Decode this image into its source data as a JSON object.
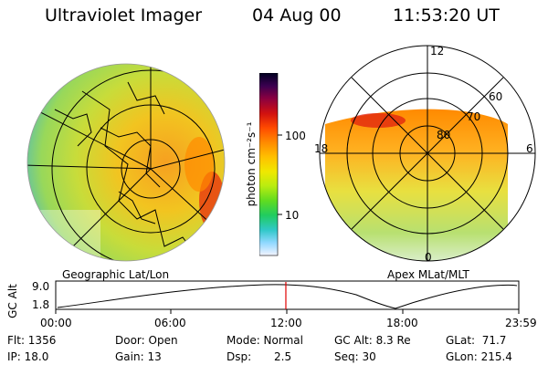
{
  "header": {
    "instrument": "Ultraviolet Imager",
    "date": "04 Aug 00",
    "time": "11:53:20 UT"
  },
  "left_panel": {
    "caption": "Geographic Lat/Lon"
  },
  "right_panel": {
    "caption": "Apex MLat/MLT",
    "mlt_labels": {
      "top": "12",
      "left": "18",
      "right": "6",
      "bottom": "0"
    },
    "lat_labels": [
      "80",
      "70",
      "60"
    ]
  },
  "colorbar": {
    "unit_label": "photon cm⁻²s⁻¹",
    "ticks": [
      "100",
      "10"
    ],
    "colors": [
      "#000020",
      "#200040",
      "#6a0050",
      "#c00018",
      "#ff3000",
      "#ff7a00",
      "#ffb000",
      "#ffe000",
      "#d8f000",
      "#80e000",
      "#20d040",
      "#20c8a0",
      "#40c8ff",
      "#a0d8ff",
      "#f2f2ff"
    ]
  },
  "timeline": {
    "ylabel": "GC Alt",
    "yticks": [
      "9.0",
      "1.8"
    ],
    "xticks": [
      "00:00",
      "06:00",
      "12:00",
      "18:00",
      "23:59"
    ],
    "current_time_fraction": 0.497
  },
  "info": {
    "filter": "Flt: 1356",
    "ip": "IP: 18.0",
    "door": "Door: Open",
    "gain": "Gain: 13",
    "mode": "Mode: Normal",
    "dsp_label": "Dsp:",
    "dsp_value": "2.5",
    "gc_alt": "GC Alt: 8.3 Re",
    "seq": "Seq: 30",
    "glat": "GLat:  71.7",
    "glon": "GLon: 215.4"
  }
}
